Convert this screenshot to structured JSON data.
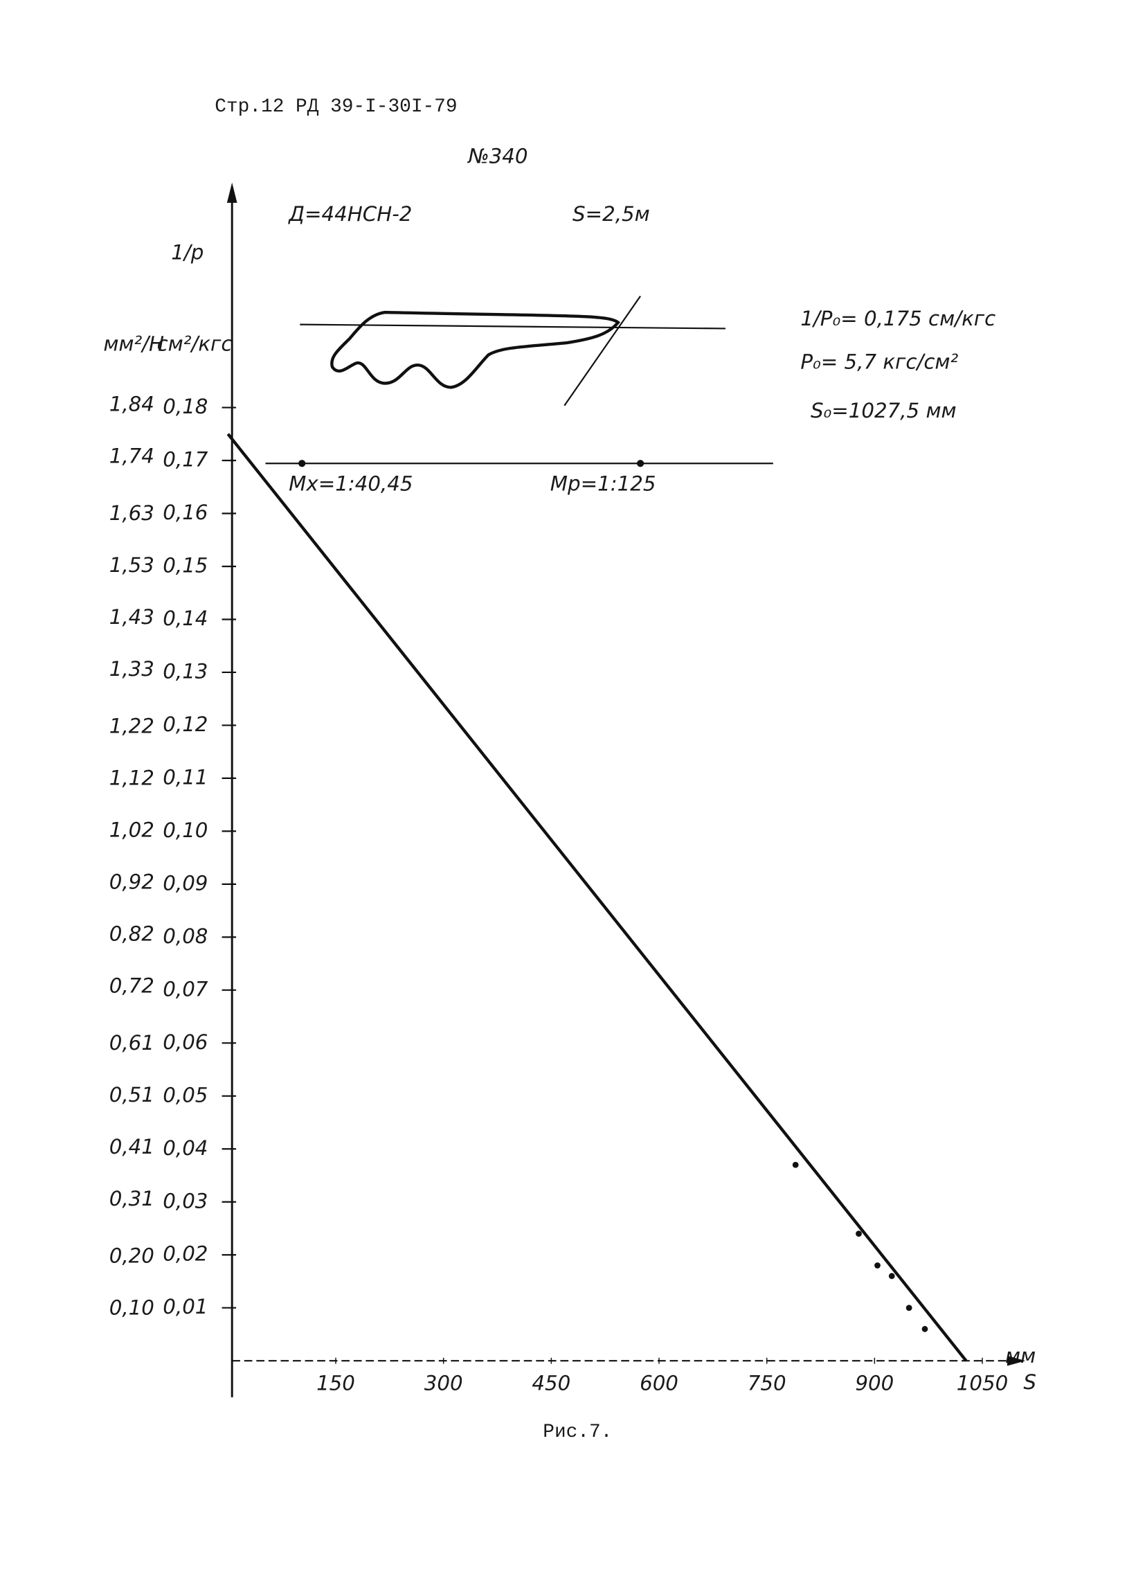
{
  "header": "Стр.12 РД 39-I-30I-79",
  "number": "№340",
  "caption": "Рис.7.",
  "chart_data": {
    "type": "line",
    "y_label": "1/p",
    "y_unit": "см²/кгс",
    "y2_unit": "мм²/Н",
    "x_label": "S",
    "x_unit": "мм",
    "annotations": {
      "pump": "Д=44НСН-2",
      "stroke": "S=2,5м",
      "inv_p0": "1/P₀= 0,175 см/кгс",
      "p0": "P₀= 5,7 кгс/см²",
      "s0": "S₀=1027,5 мм",
      "mx": "Mx=1:40,45",
      "mp": "Mp=1:125"
    },
    "series": [
      {
        "color": "#111111",
        "x": [
          0,
          1027.5
        ],
        "values": [
          0.175,
          0
        ]
      },
      {
        "color": "#111111",
        "markers": true,
        "x": [
          790,
          878,
          904,
          924,
          948,
          970
        ],
        "values": [
          0.037,
          0.024,
          0.018,
          0.016,
          0.01,
          0.006
        ]
      }
    ],
    "xlim": [
      0,
      1110
    ],
    "xticks": [
      150,
      300,
      450,
      600,
      750,
      900,
      1050
    ],
    "ylim": [
      0,
      0.22
    ],
    "yticks": [
      {
        "value": 0.01,
        "label": "0,01"
      },
      {
        "value": 0.02,
        "label": "0,02"
      },
      {
        "value": 0.03,
        "label": "0,03"
      },
      {
        "value": 0.04,
        "label": "0,04"
      },
      {
        "value": 0.05,
        "label": "0,05"
      },
      {
        "value": 0.06,
        "label": "0,06"
      },
      {
        "value": 0.07,
        "label": "0,07"
      },
      {
        "value": 0.08,
        "label": "0,08"
      },
      {
        "value": 0.09,
        "label": "0,09"
      },
      {
        "value": 0.1,
        "label": "0,10"
      },
      {
        "value": 0.11,
        "label": "0,11"
      },
      {
        "value": 0.12,
        "label": "0,12"
      },
      {
        "value": 0.13,
        "label": "0,13"
      },
      {
        "value": 0.14,
        "label": "0,14"
      },
      {
        "value": 0.15,
        "label": "0,15"
      },
      {
        "value": 0.16,
        "label": "0,16"
      },
      {
        "value": 0.17,
        "label": "0,17"
      },
      {
        "value": 0.18,
        "label": "0,18"
      }
    ],
    "y2lim": [
      0,
      2.2434
    ],
    "y2ticks": [
      {
        "value": 0.1,
        "label": "0,10"
      },
      {
        "value": 0.2,
        "label": "0,20"
      },
      {
        "value": 0.31,
        "label": "0,31"
      },
      {
        "value": 0.41,
        "label": "0,41"
      },
      {
        "value": 0.51,
        "label": "0,51"
      },
      {
        "value": 0.61,
        "label": "0,61"
      },
      {
        "value": 0.72,
        "label": "0,72"
      },
      {
        "value": 0.82,
        "label": "0,82"
      },
      {
        "value": 0.92,
        "label": "0,92"
      },
      {
        "value": 1.02,
        "label": "1,02"
      },
      {
        "value": 1.12,
        "label": "1,12"
      },
      {
        "value": 1.22,
        "label": "1,22"
      },
      {
        "value": 1.33,
        "label": "1,33"
      },
      {
        "value": 1.43,
        "label": "1,43"
      },
      {
        "value": 1.53,
        "label": "1,53"
      },
      {
        "value": 1.63,
        "label": "1,63"
      },
      {
        "value": 1.74,
        "label": "1,74"
      },
      {
        "value": 1.84,
        "label": "1,84"
      }
    ]
  }
}
